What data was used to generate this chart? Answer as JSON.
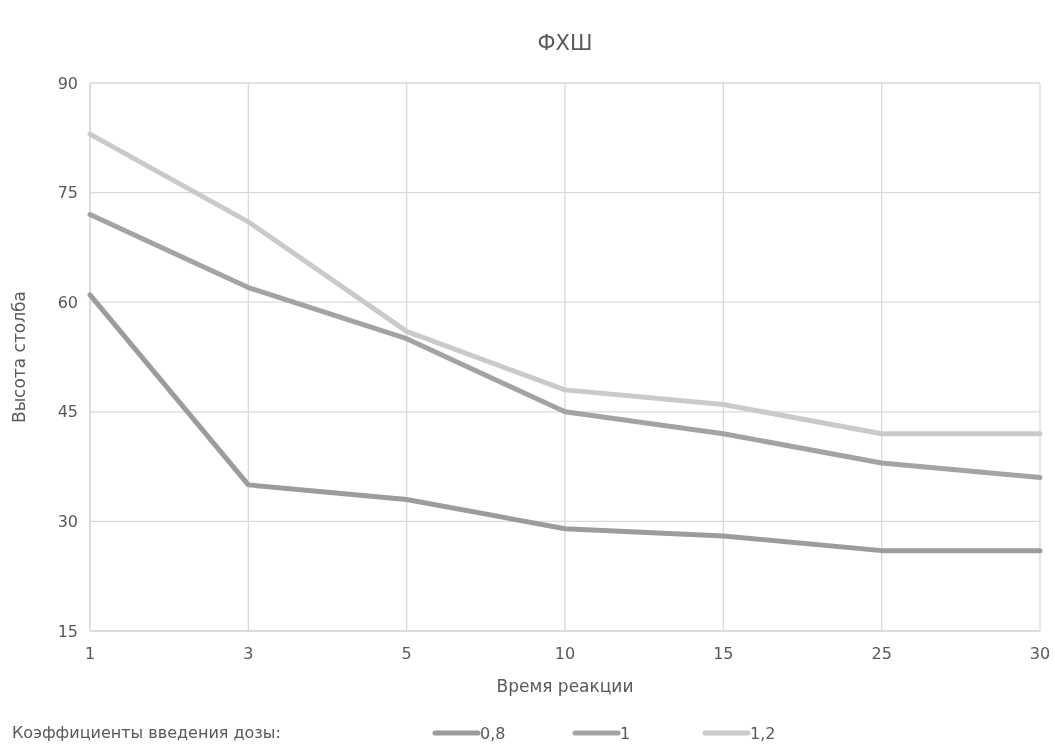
{
  "chart_data": {
    "type": "line",
    "title": "ФХШ",
    "xlabel": "Время реакции",
    "ylabel": "Высота столба",
    "legend_title": "Коэффициенты введения дозы:",
    "categories": [
      "1",
      "3",
      "5",
      "10",
      "15",
      "25",
      "30"
    ],
    "series": [
      {
        "name": "0,8",
        "color": "#9c9c9c",
        "values": [
          61,
          35,
          33,
          29,
          28,
          26,
          26
        ]
      },
      {
        "name": "1",
        "color": "#a3a3a3",
        "values": [
          72,
          62,
          55,
          45,
          42,
          38,
          36
        ]
      },
      {
        "name": "1,2",
        "color": "#cacaca",
        "values": [
          83,
          71,
          56,
          48,
          46,
          42,
          42
        ]
      }
    ],
    "ylim": [
      15,
      90
    ],
    "yticks": [
      15,
      30,
      45,
      60,
      75,
      90
    ],
    "grid": true,
    "legend": "bottom",
    "marker": "none",
    "line_style": "solid"
  }
}
